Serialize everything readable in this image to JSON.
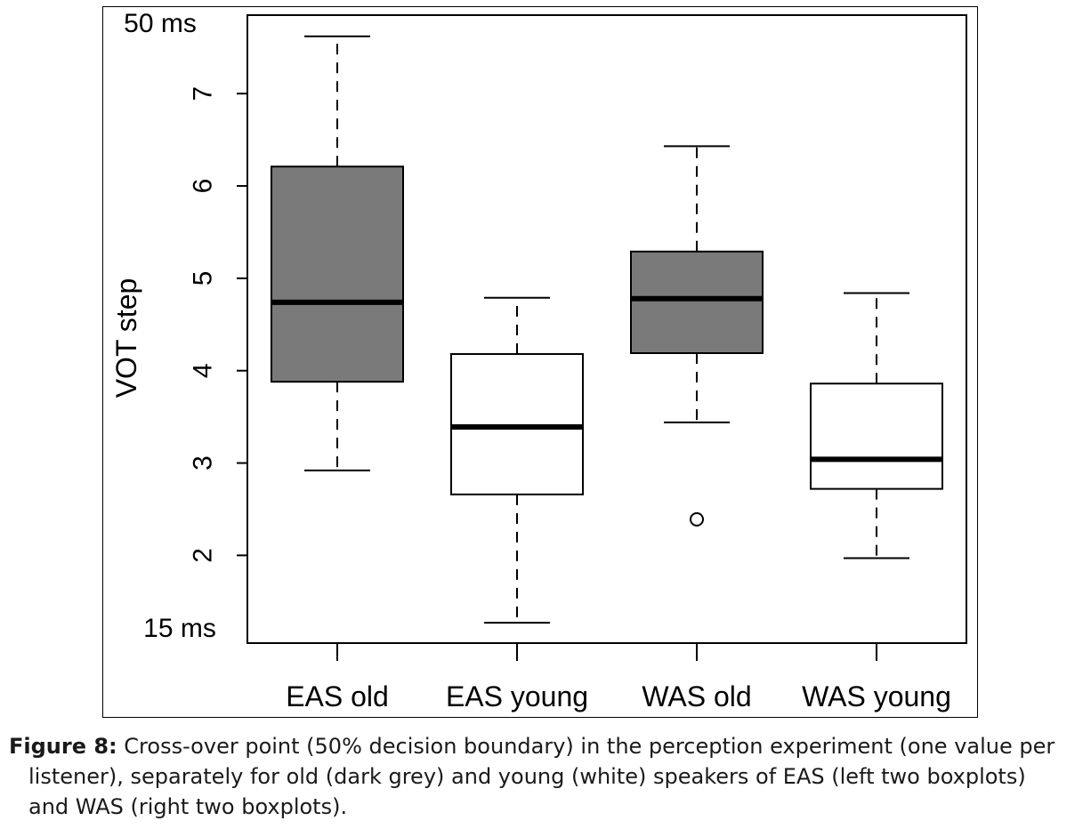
{
  "chart_data": {
    "type": "boxplot",
    "categories": [
      "EAS old",
      "EAS young",
      "WAS old",
      "WAS young"
    ],
    "ylabel": "VOT step",
    "xlabel": "",
    "ylim": [
      1.05,
      7.85
    ],
    "yticks": [
      2,
      3,
      4,
      5,
      6,
      7
    ],
    "y_end_labels": {
      "top": "50 ms",
      "bottom": "15 ms"
    },
    "boxes": [
      {
        "category": "EAS old",
        "fill": "#7a7a7a",
        "whisker_low": 2.92,
        "q1": 3.88,
        "median": 4.74,
        "q3": 6.21,
        "whisker_high": 7.62,
        "outliers": []
      },
      {
        "category": "EAS young",
        "fill": "#ffffff",
        "whisker_low": 1.27,
        "q1": 2.66,
        "median": 3.39,
        "q3": 4.18,
        "whisker_high": 4.79,
        "outliers": []
      },
      {
        "category": "WAS old",
        "fill": "#7a7a7a",
        "whisker_low": 3.44,
        "q1": 4.19,
        "median": 4.78,
        "q3": 5.29,
        "whisker_high": 6.43,
        "outliers": [
          2.39
        ]
      },
      {
        "category": "WAS young",
        "fill": "#ffffff",
        "whisker_low": 1.97,
        "q1": 2.72,
        "median": 3.04,
        "q3": 3.86,
        "whisker_high": 4.84,
        "outliers": []
      }
    ],
    "grid": false,
    "legend": "none"
  },
  "caption": {
    "label": "Figure 8:",
    "line1": " Cross-over point (50% decision boundary) in the perception experiment (one value per",
    "line2": "listener), separately for old (dark grey) and young (white) speakers of EAS (left two boxplots)",
    "line3": "and WAS (right two boxplots)."
  }
}
